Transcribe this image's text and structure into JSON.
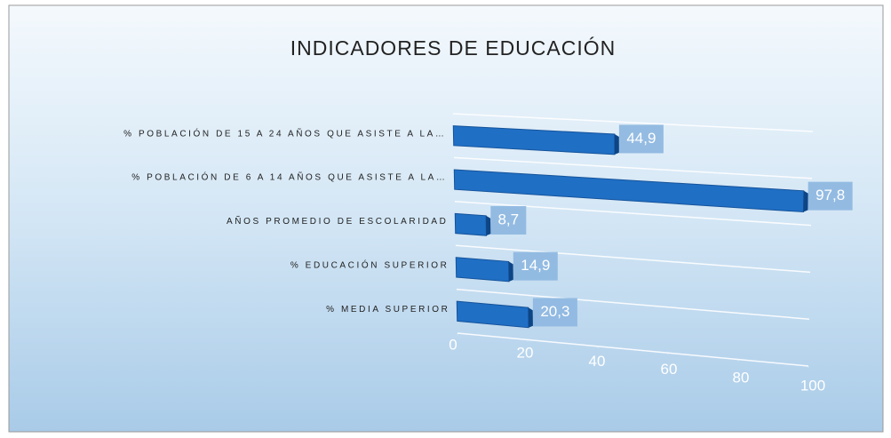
{
  "chart_data": {
    "type": "bar",
    "title": "INDICADORES  DE EDUCACIÓN",
    "categories": [
      "% POBLACIÓN DE 15 A 24 AÑOS QUE ASISTE A LA…",
      "% POBLACIÓN DE 6 A 14 AÑOS QUE ASISTE A LA…",
      "AÑOS PROMEDIO DE ESCOLARIDAD",
      "% EDUCACIÓN SUPERIOR",
      "% MEDIA SUPERIOR"
    ],
    "values": [
      44.9,
      97.8,
      8.7,
      14.9,
      20.3
    ],
    "value_labels": [
      "44,9",
      "97,8",
      "8,7",
      "14,9",
      "20,3"
    ],
    "color": "#1f6fc5",
    "xlim": [
      0,
      100
    ],
    "xticks": [
      0,
      20,
      40,
      60,
      80,
      100
    ]
  }
}
